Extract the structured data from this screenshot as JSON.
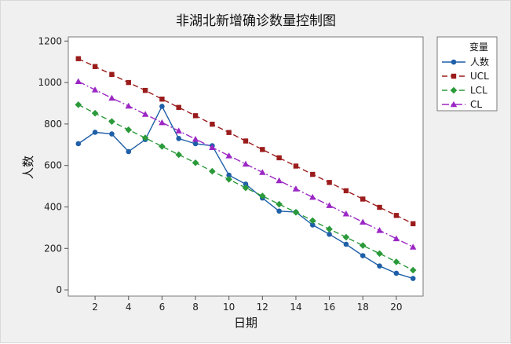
{
  "chart_data": {
    "type": "line",
    "title": "非湖北新增确诊数量控制图",
    "xlabel": "日期",
    "ylabel": "人数",
    "x": [
      1,
      2,
      3,
      4,
      5,
      6,
      7,
      8,
      9,
      10,
      11,
      12,
      13,
      14,
      15,
      16,
      17,
      18,
      19,
      20,
      21
    ],
    "xlim": [
      0.4,
      21.6
    ],
    "ylim": [
      -30,
      1220
    ],
    "xticks": [
      2,
      4,
      6,
      8,
      10,
      12,
      14,
      16,
      18,
      20
    ],
    "yticks": [
      0,
      200,
      400,
      600,
      800,
      1000,
      1200
    ],
    "grid": false,
    "legend": {
      "title": "变量",
      "position": "right"
    },
    "series": [
      {
        "name": "人数",
        "color": "#1f5fa8",
        "marker": "circle",
        "dash": "",
        "values": [
          705,
          760,
          752,
          667,
          725,
          885,
          730,
          705,
          695,
          553,
          510,
          443,
          380,
          375,
          313,
          268,
          220,
          165,
          115,
          80,
          55
        ]
      },
      {
        "name": "UCL",
        "color": "#9b1c1c",
        "marker": "square",
        "dash": "7,4",
        "values": [
          1115,
          1077,
          1039,
          1000,
          962,
          920,
          880,
          840,
          799,
          759,
          718,
          677,
          637,
          597,
          557,
          518,
          478,
          438,
          398,
          359,
          319
        ]
      },
      {
        "name": "LCL",
        "color": "#2a9a3a",
        "marker": "diamond",
        "dash": "7,4",
        "values": [
          893,
          852,
          812,
          772,
          733,
          692,
          652,
          613,
          572,
          533,
          492,
          453,
          413,
          374,
          334,
          293,
          254,
          214,
          175,
          135,
          95
        ]
      },
      {
        "name": "CL",
        "color": "#9b27c4",
        "marker": "triangle",
        "dash": "9,3,2,3",
        "values": [
          1005,
          965,
          925,
          887,
          847,
          807,
          767,
          727,
          687,
          647,
          607,
          567,
          527,
          487,
          447,
          407,
          367,
          327,
          287,
          247,
          207
        ]
      }
    ]
  }
}
